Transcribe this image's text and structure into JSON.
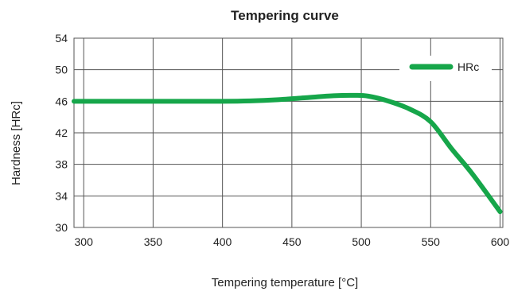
{
  "chart_data": {
    "type": "line",
    "title": "Tempering curve",
    "xlabel": "Tempering temperature [°C]",
    "ylabel": "Hardness [HRc]",
    "xlim": [
      293,
      602
    ],
    "ylim": [
      30,
      54
    ],
    "x_ticks": [
      300,
      350,
      400,
      450,
      500,
      550,
      600
    ],
    "y_ticks": [
      30,
      34,
      38,
      42,
      46,
      50,
      54
    ],
    "grid": true,
    "legend_position": "top-right",
    "series": [
      {
        "name": "HRc",
        "color": "#16a64a",
        "x": [
          293,
          300,
          350,
          400,
          420,
          440,
          460,
          480,
          495,
          505,
          520,
          535,
          550,
          565,
          580,
          600
        ],
        "y": [
          46.0,
          46.0,
          46.0,
          46.0,
          46.05,
          46.2,
          46.45,
          46.7,
          46.75,
          46.65,
          46.0,
          45.0,
          43.4,
          40.0,
          36.8,
          32.0
        ]
      }
    ]
  }
}
